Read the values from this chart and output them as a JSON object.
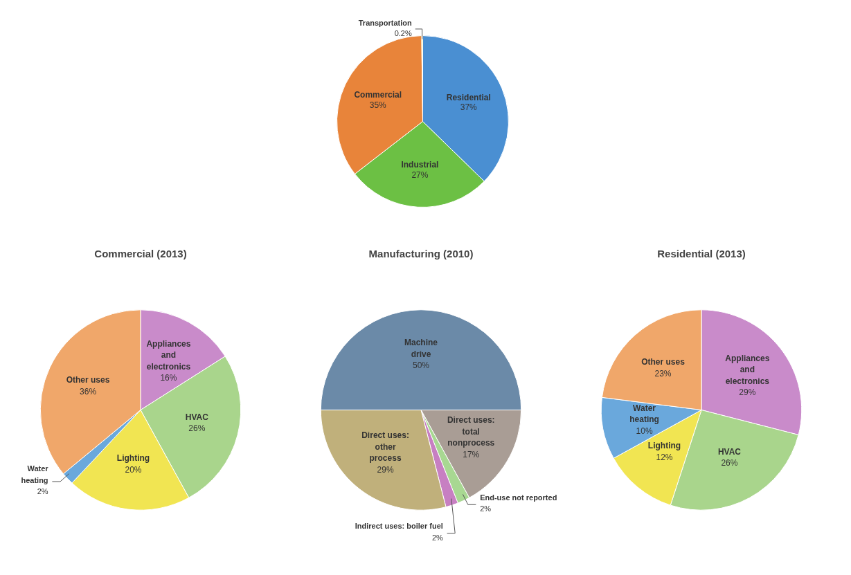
{
  "chart_data": [
    {
      "type": "pie",
      "categories": [
        "Residential",
        "Industrial",
        "Commercial",
        "Transportation"
      ],
      "values": [
        37,
        27,
        35,
        0.2
      ],
      "value_labels": [
        "37%",
        "27%",
        "35%",
        "0.2%"
      ],
      "colors": [
        "#4a8fd2",
        "#6cc044",
        "#e8843a",
        "#f2e234"
      ]
    },
    {
      "type": "pie",
      "title": "Commercial (2013)",
      "categories": [
        "Appliances and electronics",
        "HVAC",
        "Lighting",
        "Water heating",
        "Other uses"
      ],
      "values": [
        16,
        26,
        20,
        2,
        36
      ],
      "value_labels": [
        "16%",
        "26%",
        "20%",
        "2%",
        "36%"
      ],
      "colors": [
        "#c98bca",
        "#a9d58c",
        "#f1e552",
        "#6aa8dc",
        "#f0a76a"
      ]
    },
    {
      "type": "pie",
      "title": "Manufacturing (2010)",
      "categories": [
        "Machine drive",
        "Direct uses: total nonprocess",
        "End-use not reported",
        "Indirect uses: boiler fuel",
        "Direct uses: other process"
      ],
      "values": [
        50,
        17,
        2,
        2,
        29
      ],
      "value_labels": [
        "50%",
        "17%",
        "2%",
        "2%",
        "29%"
      ],
      "colors": [
        "#6b8aa8",
        "#a99d95",
        "#a8d892",
        "#c77fc2",
        "#c0b07b"
      ]
    },
    {
      "type": "pie",
      "title": "Residential (2013)",
      "categories": [
        "Appliances and electronics",
        "HVAC",
        "Lighting",
        "Water heating",
        "Other uses"
      ],
      "values": [
        29,
        26,
        12,
        10,
        23
      ],
      "value_labels": [
        "29%",
        "26%",
        "12%",
        "10%",
        "23%"
      ],
      "colors": [
        "#c98bca",
        "#a9d58c",
        "#f1e552",
        "#6aa8dc",
        "#f0a76a"
      ]
    }
  ]
}
